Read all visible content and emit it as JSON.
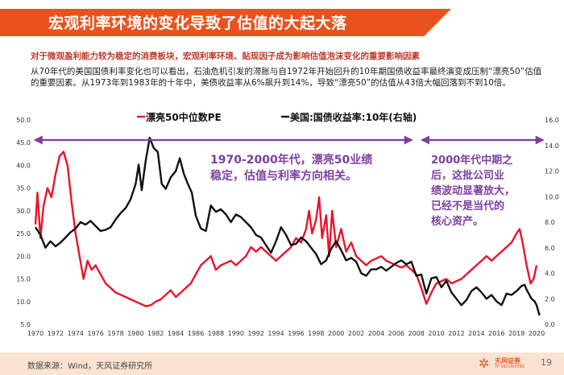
{
  "slide": {
    "title": "宏观利率环境的变化导致了估值的大起大落",
    "subtitle": "对于微观盈利能力较为稳定的消费板块，宏观利率环境、贴现因子成为影响估值泡沫变化的重要影响因素",
    "body": "从70年代的美国国债利率变化也可以看出，石油危机引发的滞胀与自1972年开始回升的10年期国债收益率最终演变成压制“漂亮50”估值的重要因素。从1973年到1983年的十年中，美债收益率从6%飙升到14%，导致“漂亮50”的估值从43倍大幅回落到不到10倍。",
    "source": "数据来源：Wind，天风证券研究所",
    "logo_name": "天风证券",
    "logo_sub": "TF SECURITIES",
    "page_number": "19"
  },
  "colors": {
    "brand": "#e8531d",
    "pe_series": "#e8152b",
    "yield_series": "#111111",
    "arrow": "#7e3fa1",
    "annotation": "#7e3fa1"
  },
  "chart_data": {
    "type": "line",
    "title": "",
    "xlabel": "",
    "ylabel_left": "",
    "ylabel_right": "",
    "xlim": [
      1970,
      2020
    ],
    "x_ticks": [
      1970,
      1972,
      1974,
      1976,
      1978,
      1980,
      1982,
      1984,
      1986,
      1988,
      1990,
      1992,
      1994,
      1996,
      1998,
      2000,
      2002,
      2004,
      2006,
      2008,
      2010,
      2012,
      2014,
      2016,
      2018,
      2020
    ],
    "ylim_left": [
      5,
      50
    ],
    "y_ticks_left": [
      "5.0",
      "10.0",
      "15.0",
      "20.0",
      "25.0",
      "30.0",
      "35.0",
      "40.0",
      "45.0",
      "50.0"
    ],
    "ylim_right": [
      0,
      16
    ],
    "y_ticks_right": [
      "0.0",
      "2.0",
      "4.0",
      "6.0",
      "8.0",
      "10.0",
      "12.0",
      "14.0",
      "16.0"
    ],
    "legend": [
      "漂亮50中位数PE",
      "美国:国债收益率:10年(右轴)"
    ],
    "series": [
      {
        "name": "漂亮50中位数PE",
        "axis": "left",
        "points": [
          [
            1970.0,
            27
          ],
          [
            1970.2,
            34
          ],
          [
            1970.5,
            24
          ],
          [
            1970.8,
            31
          ],
          [
            1971.2,
            35
          ],
          [
            1971.6,
            33
          ],
          [
            1972.0,
            38
          ],
          [
            1972.4,
            42
          ],
          [
            1972.8,
            43
          ],
          [
            1973.2,
            40
          ],
          [
            1973.6,
            32
          ],
          [
            1974.0,
            25
          ],
          [
            1974.4,
            20
          ],
          [
            1974.8,
            15
          ],
          [
            1975.2,
            19
          ],
          [
            1975.6,
            17
          ],
          [
            1976.0,
            18
          ],
          [
            1976.5,
            16
          ],
          [
            1977.0,
            14
          ],
          [
            1977.5,
            13
          ],
          [
            1978.0,
            12
          ],
          [
            1978.5,
            11.5
          ],
          [
            1979.0,
            11
          ],
          [
            1979.5,
            10.5
          ],
          [
            1980.0,
            10
          ],
          [
            1980.5,
            9.5
          ],
          [
            1981.0,
            9
          ],
          [
            1981.5,
            9.2
          ],
          [
            1982.0,
            10
          ],
          [
            1982.5,
            10.5
          ],
          [
            1983.0,
            11.5
          ],
          [
            1983.5,
            12.5
          ],
          [
            1984.0,
            11
          ],
          [
            1984.5,
            12
          ],
          [
            1985.0,
            13
          ],
          [
            1985.5,
            14
          ],
          [
            1986.0,
            16
          ],
          [
            1986.5,
            18
          ],
          [
            1987.0,
            19
          ],
          [
            1987.5,
            20
          ],
          [
            1988.0,
            17
          ],
          [
            1988.5,
            18
          ],
          [
            1989.0,
            18.5
          ],
          [
            1989.5,
            19
          ],
          [
            1990.0,
            18
          ],
          [
            1990.5,
            19
          ],
          [
            1991.0,
            20
          ],
          [
            1991.5,
            22
          ],
          [
            1992.0,
            21
          ],
          [
            1992.5,
            22
          ],
          [
            1993.0,
            21
          ],
          [
            1993.5,
            20
          ],
          [
            1994.0,
            19
          ],
          [
            1994.5,
            20
          ],
          [
            1995.0,
            21
          ],
          [
            1995.5,
            22
          ],
          [
            1996.0,
            24
          ],
          [
            1996.5,
            23
          ],
          [
            1997.0,
            26
          ],
          [
            1997.3,
            30
          ],
          [
            1997.6,
            25
          ],
          [
            1998.0,
            28
          ],
          [
            1998.3,
            33
          ],
          [
            1998.6,
            24
          ],
          [
            1999.0,
            29
          ],
          [
            1999.3,
            20
          ],
          [
            1999.6,
            30
          ],
          [
            2000.0,
            22
          ],
          [
            2000.5,
            26
          ],
          [
            2001.0,
            21
          ],
          [
            2001.5,
            23
          ],
          [
            2002.0,
            20
          ],
          [
            2002.5,
            19
          ],
          [
            2003.0,
            18
          ],
          [
            2003.5,
            19
          ],
          [
            2004.0,
            19.5
          ],
          [
            2004.5,
            20
          ],
          [
            2005.0,
            19
          ],
          [
            2005.5,
            18.5
          ],
          [
            2006.0,
            18
          ],
          [
            2006.5,
            17.5
          ],
          [
            2007.0,
            18
          ],
          [
            2007.5,
            17
          ],
          [
            2008.0,
            16
          ],
          [
            2008.5,
            13
          ],
          [
            2009.0,
            9.5
          ],
          [
            2009.5,
            12
          ],
          [
            2010.0,
            14
          ],
          [
            2010.5,
            14.5
          ],
          [
            2011.0,
            15
          ],
          [
            2011.5,
            14
          ],
          [
            2012.0,
            14.5
          ],
          [
            2012.5,
            15
          ],
          [
            2013.0,
            16
          ],
          [
            2013.5,
            17
          ],
          [
            2014.0,
            18
          ],
          [
            2014.5,
            19
          ],
          [
            2015.0,
            20
          ],
          [
            2015.5,
            19
          ],
          [
            2016.0,
            20
          ],
          [
            2016.5,
            21
          ],
          [
            2017.0,
            22
          ],
          [
            2017.5,
            23
          ],
          [
            2018.0,
            25
          ],
          [
            2018.3,
            26
          ],
          [
            2018.6,
            23
          ],
          [
            2019.0,
            18
          ],
          [
            2019.4,
            14
          ],
          [
            2019.7,
            15
          ],
          [
            2020.0,
            18
          ]
        ]
      },
      {
        "name": "美国:国债收益率:10年(右轴)",
        "axis": "right",
        "points": [
          [
            1970.0,
            7.6
          ],
          [
            1970.5,
            7.0
          ],
          [
            1971.0,
            6.0
          ],
          [
            1971.5,
            6.5
          ],
          [
            1972.0,
            6.1
          ],
          [
            1972.5,
            6.4
          ],
          [
            1973.0,
            6.8
          ],
          [
            1973.5,
            7.2
          ],
          [
            1974.0,
            7.5
          ],
          [
            1974.5,
            8.0
          ],
          [
            1975.0,
            7.8
          ],
          [
            1975.5,
            8.1
          ],
          [
            1976.0,
            7.7
          ],
          [
            1976.5,
            7.3
          ],
          [
            1977.0,
            7.4
          ],
          [
            1977.5,
            7.6
          ],
          [
            1978.0,
            8.2
          ],
          [
            1978.5,
            8.7
          ],
          [
            1979.0,
            9.1
          ],
          [
            1979.5,
            9.8
          ],
          [
            1980.0,
            11.0
          ],
          [
            1980.3,
            12.5
          ],
          [
            1980.6,
            10.5
          ],
          [
            1981.0,
            12.8
          ],
          [
            1981.4,
            14.6
          ],
          [
            1981.8,
            13.8
          ],
          [
            1982.2,
            13.5
          ],
          [
            1982.6,
            11.0
          ],
          [
            1983.0,
            10.6
          ],
          [
            1983.5,
            11.5
          ],
          [
            1984.0,
            12.0
          ],
          [
            1984.4,
            13.0
          ],
          [
            1984.8,
            11.8
          ],
          [
            1985.2,
            11.0
          ],
          [
            1985.6,
            10.3
          ],
          [
            1986.0,
            8.5
          ],
          [
            1986.5,
            7.5
          ],
          [
            1987.0,
            7.3
          ],
          [
            1987.5,
            9.3
          ],
          [
            1988.0,
            8.8
          ],
          [
            1988.5,
            9.0
          ],
          [
            1989.0,
            8.6
          ],
          [
            1989.5,
            8.0
          ],
          [
            1990.0,
            8.6
          ],
          [
            1990.5,
            8.4
          ],
          [
            1991.0,
            8.0
          ],
          [
            1991.5,
            7.6
          ],
          [
            1992.0,
            7.0
          ],
          [
            1992.5,
            6.8
          ],
          [
            1993.0,
            6.2
          ],
          [
            1993.5,
            5.6
          ],
          [
            1994.0,
            6.5
          ],
          [
            1994.5,
            7.6
          ],
          [
            1995.0,
            7.0
          ],
          [
            1995.5,
            6.2
          ],
          [
            1996.0,
            6.3
          ],
          [
            1996.5,
            6.8
          ],
          [
            1997.0,
            6.5
          ],
          [
            1997.5,
            6.0
          ],
          [
            1998.0,
            5.5
          ],
          [
            1998.5,
            4.7
          ],
          [
            1999.0,
            5.0
          ],
          [
            1999.5,
            5.9
          ],
          [
            2000.0,
            6.5
          ],
          [
            2000.5,
            5.8
          ],
          [
            2001.0,
            5.0
          ],
          [
            2001.5,
            5.2
          ],
          [
            2002.0,
            4.9
          ],
          [
            2002.5,
            4.0
          ],
          [
            2003.0,
            3.8
          ],
          [
            2003.5,
            4.3
          ],
          [
            2004.0,
            4.3
          ],
          [
            2004.5,
            4.5
          ],
          [
            2005.0,
            4.2
          ],
          [
            2005.5,
            4.5
          ],
          [
            2006.0,
            4.8
          ],
          [
            2006.5,
            5.0
          ],
          [
            2007.0,
            4.7
          ],
          [
            2007.5,
            4.9
          ],
          [
            2008.0,
            3.8
          ],
          [
            2008.5,
            3.9
          ],
          [
            2009.0,
            2.4
          ],
          [
            2009.5,
            3.6
          ],
          [
            2010.0,
            3.7
          ],
          [
            2010.5,
            2.9
          ],
          [
            2011.0,
            3.4
          ],
          [
            2011.5,
            2.5
          ],
          [
            2012.0,
            2.0
          ],
          [
            2012.5,
            1.5
          ],
          [
            2013.0,
            1.9
          ],
          [
            2013.5,
            2.6
          ],
          [
            2014.0,
            2.9
          ],
          [
            2014.5,
            2.5
          ],
          [
            2015.0,
            2.0
          ],
          [
            2015.5,
            2.3
          ],
          [
            2016.0,
            1.8
          ],
          [
            2016.5,
            1.5
          ],
          [
            2017.0,
            2.4
          ],
          [
            2017.5,
            2.3
          ],
          [
            2018.0,
            2.6
          ],
          [
            2018.5,
            3.0
          ],
          [
            2018.8,
            3.1
          ],
          [
            2019.0,
            2.7
          ],
          [
            2019.5,
            2.0
          ],
          [
            2019.8,
            1.8
          ],
          [
            2020.0,
            1.5
          ],
          [
            2020.3,
            0.7
          ]
        ]
      }
    ],
    "annotations": [
      "1970-2000年代，漂亮50业绩",
      "稳定，估值与利率方向相关。",
      "2000年代中期之",
      "后，这批公司业",
      "绩波动显著放大，",
      "已经不是当代的",
      "核心资产。"
    ],
    "period_arrows": [
      [
        1970,
        2007.5
      ],
      [
        2008.6,
        2020.6
      ]
    ]
  }
}
